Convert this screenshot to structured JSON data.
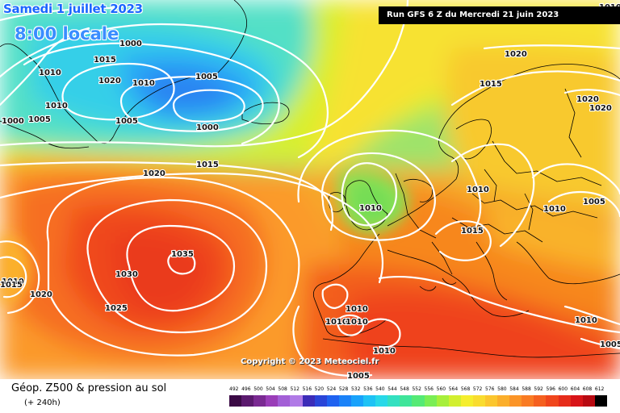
{
  "map": {
    "date_line": "Samedi 1 juillet 2023",
    "time_line": "8:00 locale",
    "run_info": "Run GFS 6 Z du Mercredi 21 juin 2023",
    "copyright": "Copyright © 2023 Meteociel.fr",
    "legend_title": "Géop. Z500 & pression au sol",
    "legend_subtitle": "(+ 240h)",
    "isobar_labels": [
      "1000",
      "1015",
      "1010",
      "1020",
      "1010",
      "1005",
      "1000",
      "1005",
      "1010",
      "1000",
      "1005",
      "1020",
      "1015",
      "1035",
      "1030",
      "1025",
      "1020",
      "1010",
      "1010",
      "1015",
      "1020",
      "1015",
      "1010",
      "1020",
      "1020",
      "1005",
      "1010",
      "1015",
      "1010",
      "1010",
      "1010",
      "1010",
      "1005",
      "1005",
      "1010",
      "1010"
    ],
    "scale_values": [
      "492",
      "496",
      "500",
      "504",
      "508",
      "512",
      "516",
      "520",
      "524",
      "528",
      "532",
      "536",
      "540",
      "544",
      "548",
      "552",
      "556",
      "560",
      "564",
      "568",
      "572",
      "576",
      "580",
      "584",
      "588",
      "592",
      "596",
      "600",
      "604",
      "608",
      "612"
    ],
    "scale_colors": [
      "#3b0a45",
      "#5b1a6e",
      "#7a2a92",
      "#9a3db8",
      "#a35fd6",
      "#b07ae6",
      "#3c2cb8",
      "#2a45d8",
      "#1f62f0",
      "#1b82f8",
      "#18a2fb",
      "#1ec2f5",
      "#28d8e8",
      "#33e0c0",
      "#3fe59a",
      "#55ea75",
      "#7aee55",
      "#a7ef3b",
      "#d2ef2f",
      "#f5ee2e",
      "#f9dc2f",
      "#fbc62e",
      "#fbae2b",
      "#fb9427",
      "#f97b23",
      "#f5601f",
      "#f0461c",
      "#e62c1a",
      "#d81418",
      "#b80a12",
      "#000000"
    ]
  }
}
